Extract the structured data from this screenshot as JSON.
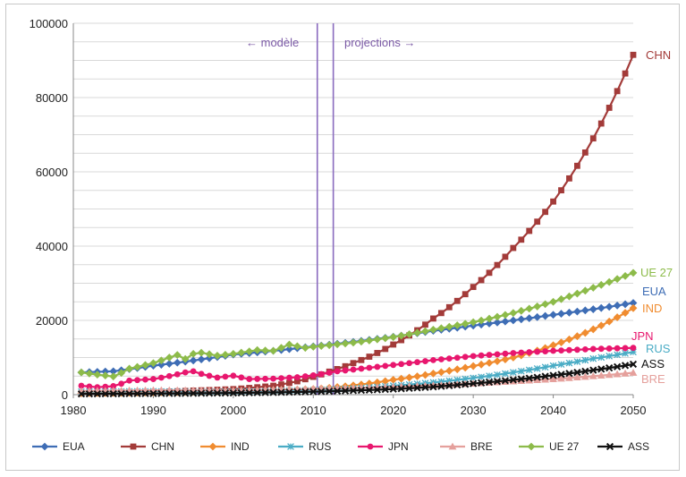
{
  "chart_data": {
    "type": "line",
    "title": "",
    "xlabel": "",
    "ylabel": "",
    "xlim": [
      1980,
      2050
    ],
    "ylim": [
      0,
      100000
    ],
    "x_ticks": [
      "1980",
      "1990",
      "2000",
      "2010",
      "2020",
      "2030",
      "2040",
      "2050"
    ],
    "y_ticks": [
      "0",
      "20000",
      "40000",
      "60000",
      "80000",
      "100000"
    ],
    "grid": "horizontal",
    "legend_position": "bottom",
    "annotations": {
      "left": "← modèle",
      "right": "projections →",
      "vlines": [
        2010.5,
        2012.5
      ]
    },
    "series": [
      {
        "name": "EUA",
        "color": "#3e6db5",
        "marker": "diamond",
        "points": [
          [
            1981,
            6000
          ],
          [
            1985,
            6300
          ],
          [
            1990,
            7800
          ],
          [
            1995,
            9200
          ],
          [
            2000,
            10800
          ],
          [
            2005,
            11800
          ],
          [
            2010,
            13000
          ],
          [
            2015,
            14200
          ],
          [
            2020,
            15600
          ],
          [
            2025,
            17200
          ],
          [
            2030,
            18600
          ],
          [
            2035,
            20000
          ],
          [
            2040,
            21500
          ],
          [
            2045,
            23000
          ],
          [
            2050,
            24700
          ]
        ]
      },
      {
        "name": "CHN",
        "color": "#a33b39",
        "marker": "square",
        "points": [
          [
            1981,
            300
          ],
          [
            1985,
            400
          ],
          [
            1990,
            700
          ],
          [
            1995,
            1100
          ],
          [
            2000,
            1500
          ],
          [
            2005,
            2400
          ],
          [
            2008,
            3600
          ],
          [
            2010,
            4800
          ],
          [
            2012,
            6200
          ],
          [
            2015,
            8500
          ],
          [
            2020,
            13500
          ],
          [
            2025,
            20500
          ],
          [
            2030,
            29000
          ],
          [
            2035,
            39500
          ],
          [
            2040,
            52000
          ],
          [
            2045,
            69000
          ],
          [
            2050,
            91500
          ]
        ]
      },
      {
        "name": "IND",
        "color": "#f08c30",
        "marker": "diamond",
        "points": [
          [
            1981,
            400
          ],
          [
            1990,
            600
          ],
          [
            2000,
            900
          ],
          [
            2010,
            1500
          ],
          [
            2015,
            2500
          ],
          [
            2020,
            4000
          ],
          [
            2025,
            5700
          ],
          [
            2030,
            7700
          ],
          [
            2035,
            10000
          ],
          [
            2040,
            13300
          ],
          [
            2045,
            17600
          ],
          [
            2050,
            23300
          ]
        ]
      },
      {
        "name": "RUS",
        "color": "#4aacc5",
        "marker": "star",
        "points": [
          [
            1981,
            800
          ],
          [
            1990,
            900
          ],
          [
            1995,
            700
          ],
          [
            2000,
            800
          ],
          [
            2010,
            1200
          ],
          [
            2015,
            1700
          ],
          [
            2020,
            2400
          ],
          [
            2025,
            3300
          ],
          [
            2030,
            4500
          ],
          [
            2035,
            6000
          ],
          [
            2040,
            7800
          ],
          [
            2045,
            9700
          ],
          [
            2050,
            11500
          ]
        ]
      },
      {
        "name": "JPN",
        "color": "#e8176e",
        "marker": "circle",
        "points": [
          [
            1981,
            2400
          ],
          [
            1983,
            2000
          ],
          [
            1985,
            2300
          ],
          [
            1987,
            3800
          ],
          [
            1990,
            4200
          ],
          [
            1992,
            5000
          ],
          [
            1994,
            6000
          ],
          [
            1995,
            6300
          ],
          [
            1996,
            5600
          ],
          [
            1998,
            4600
          ],
          [
            2000,
            5100
          ],
          [
            2002,
            4200
          ],
          [
            2005,
            4300
          ],
          [
            2008,
            4700
          ],
          [
            2010,
            5200
          ],
          [
            2013,
            6300
          ],
          [
            2016,
            7000
          ],
          [
            2020,
            8000
          ],
          [
            2025,
            9300
          ],
          [
            2030,
            10400
          ],
          [
            2035,
            11200
          ],
          [
            2040,
            11800
          ],
          [
            2045,
            12300
          ],
          [
            2050,
            12600
          ]
        ]
      },
      {
        "name": "BRE",
        "color": "#e5a09c",
        "marker": "triangle",
        "points": [
          [
            1981,
            1000
          ],
          [
            1990,
            1200
          ],
          [
            2000,
            1100
          ],
          [
            2010,
            1600
          ],
          [
            2015,
            1800
          ],
          [
            2020,
            2100
          ],
          [
            2025,
            2500
          ],
          [
            2030,
            3000
          ],
          [
            2035,
            3600
          ],
          [
            2040,
            4200
          ],
          [
            2045,
            5000
          ],
          [
            2050,
            5900
          ]
        ]
      },
      {
        "name": "UE 27",
        "color": "#8dbb4a",
        "marker": "diamond",
        "points": [
          [
            1981,
            6000
          ],
          [
            1983,
            5400
          ],
          [
            1985,
            4900
          ],
          [
            1987,
            7000
          ],
          [
            1990,
            8500
          ],
          [
            1992,
            10000
          ],
          [
            1993,
            10700
          ],
          [
            1994,
            9600
          ],
          [
            1995,
            11000
          ],
          [
            1996,
            11300
          ],
          [
            1998,
            10500
          ],
          [
            2000,
            11000
          ],
          [
            2003,
            12000
          ],
          [
            2005,
            11800
          ],
          [
            2007,
            13500
          ],
          [
            2009,
            12600
          ],
          [
            2010,
            12900
          ],
          [
            2015,
            14000
          ],
          [
            2020,
            15500
          ],
          [
            2025,
            17500
          ],
          [
            2030,
            19500
          ],
          [
            2035,
            22000
          ],
          [
            2040,
            25000
          ],
          [
            2045,
            28800
          ],
          [
            2050,
            32800
          ]
        ]
      },
      {
        "name": "ASS",
        "color": "#111111",
        "marker": "x",
        "points": [
          [
            1981,
            200
          ],
          [
            1990,
            300
          ],
          [
            2000,
            450
          ],
          [
            2010,
            800
          ],
          [
            2015,
            1100
          ],
          [
            2020,
            1500
          ],
          [
            2025,
            2100
          ],
          [
            2030,
            3000
          ],
          [
            2035,
            4000
          ],
          [
            2040,
            5200
          ],
          [
            2045,
            6600
          ],
          [
            2050,
            8200
          ]
        ]
      }
    ],
    "end_labels": [
      {
        "text": "CHN",
        "series": "CHN"
      },
      {
        "text": "UE 27",
        "series": "UE 27"
      },
      {
        "text": "EUA",
        "series": "EUA"
      },
      {
        "text": "IND",
        "series": "IND"
      },
      {
        "text": "JPN",
        "series": "JPN"
      },
      {
        "text": "RUS",
        "series": "RUS"
      },
      {
        "text": "ASS",
        "series": "ASS"
      },
      {
        "text": "BRE",
        "series": "BRE"
      }
    ]
  }
}
